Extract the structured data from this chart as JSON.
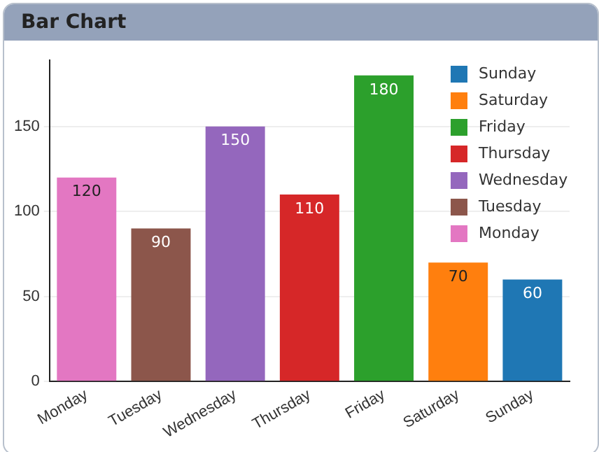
{
  "chart_data": {
    "type": "bar",
    "title": "Bar Chart",
    "categories": [
      "Monday",
      "Tuesday",
      "Wednesday",
      "Thursday",
      "Friday",
      "Saturday",
      "Sunday"
    ],
    "series": [
      {
        "name": "Sunday",
        "color": "#1f77b4",
        "values": [
          null,
          null,
          null,
          null,
          null,
          null,
          60
        ]
      },
      {
        "name": "Saturday",
        "color": "#ff7f0e",
        "values": [
          null,
          null,
          null,
          null,
          null,
          70,
          null
        ]
      },
      {
        "name": "Friday",
        "color": "#2ca02c",
        "values": [
          null,
          null,
          null,
          null,
          180,
          null,
          null
        ]
      },
      {
        "name": "Thursday",
        "color": "#d62728",
        "values": [
          null,
          null,
          null,
          110,
          null,
          null,
          null
        ]
      },
      {
        "name": "Wednesday",
        "color": "#9467bd",
        "values": [
          null,
          null,
          150,
          null,
          null,
          null,
          null
        ]
      },
      {
        "name": "Tuesday",
        "color": "#8c564b",
        "values": [
          null,
          90,
          null,
          null,
          null,
          null,
          null
        ]
      },
      {
        "name": "Monday",
        "color": "#e377c2",
        "values": [
          120,
          null,
          null,
          null,
          null,
          null,
          null
        ]
      }
    ],
    "ylim": [
      0,
      189
    ],
    "yticks": [
      0,
      50,
      100,
      150
    ],
    "grid": "y",
    "legend": "top right",
    "data_labels": true
  }
}
